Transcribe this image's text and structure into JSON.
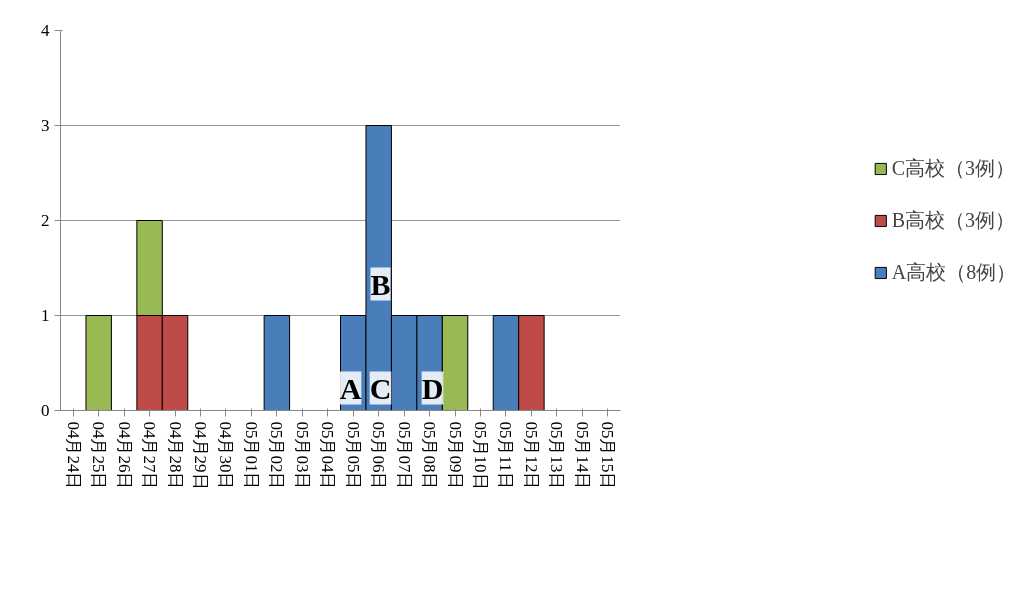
{
  "chart_data": {
    "type": "bar",
    "stacked": true,
    "categories": [
      "04月24日",
      "04月25日",
      "04月26日",
      "04月27日",
      "04月28日",
      "04月29日",
      "04月30日",
      "05月01日",
      "05月02日",
      "05月03日",
      "05月04日",
      "05月05日",
      "05月06日",
      "05月07日",
      "05月08日",
      "05月09日",
      "05月10日",
      "05月11日",
      "05月12日",
      "05月13日",
      "05月14日",
      "05月15日"
    ],
    "series": [
      {
        "name": "A高校（8例）",
        "color": "#4a7ebb",
        "values": [
          0,
          0,
          0,
          0,
          0,
          0,
          0,
          0,
          1,
          0,
          0,
          1,
          3,
          1,
          1,
          0,
          0,
          1,
          0,
          0,
          0,
          0
        ]
      },
      {
        "name": "B高校（3例）",
        "color": "#be4b48",
        "values": [
          0,
          0,
          0,
          1,
          1,
          0,
          0,
          0,
          0,
          0,
          0,
          0,
          0,
          0,
          0,
          0,
          0,
          0,
          1,
          0,
          0,
          0
        ]
      },
      {
        "name": "C高校（3例）",
        "color": "#98b954",
        "values": [
          0,
          1,
          0,
          1,
          0,
          0,
          0,
          0,
          0,
          0,
          0,
          0,
          0,
          0,
          0,
          1,
          0,
          0,
          0,
          0,
          0,
          0
        ]
      }
    ],
    "ylim": [
      0,
      4
    ],
    "yticks": [
      0,
      1,
      2,
      3,
      4
    ],
    "grid": "y",
    "legend": "right",
    "annotations": [
      "A",
      "C",
      "B",
      "D"
    ]
  }
}
